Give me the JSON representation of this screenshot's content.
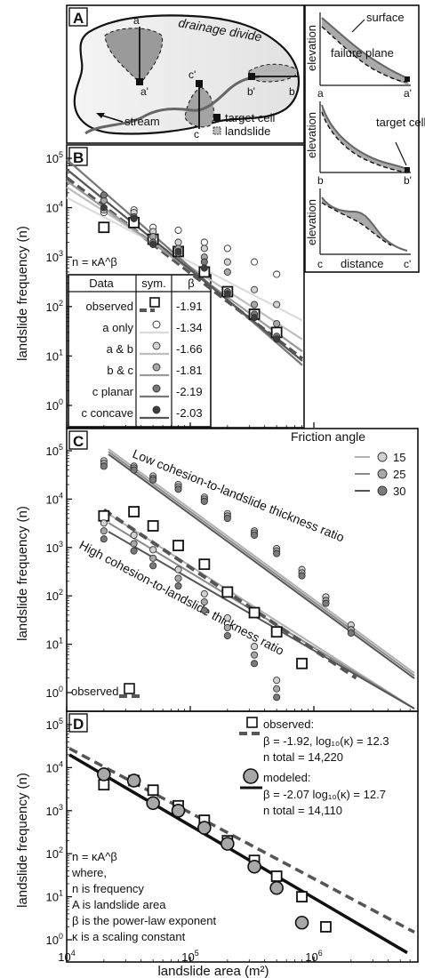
{
  "panels": {
    "A": {
      "letter": "A",
      "map_labels": {
        "drainage_divide": "drainage divide",
        "stream": "stream",
        "a": "a",
        "a_prime": "a'",
        "b": "b",
        "b_prime": "b'",
        "c": "c",
        "c_prime": "c'"
      },
      "legend": {
        "target_cell": "target cell",
        "landslide": "landslide"
      },
      "profiles": {
        "elevation_label": "elevation",
        "distance_label": "distance",
        "surface": "surface",
        "failure_plane": "failure plane",
        "target_cell": "target cell",
        "p1_left": "a",
        "p1_right": "a'",
        "p2_left": "b",
        "p2_right": "b'",
        "p3_left": "c",
        "p3_right": "c'"
      }
    },
    "B": {
      "letter": "B",
      "equation": "n = κA^β",
      "table_headers": [
        "Data",
        "sym.",
        "β"
      ],
      "table_rows": [
        {
          "data": "observed",
          "beta": "-1.91"
        },
        {
          "data": "a only",
          "beta": "-1.34"
        },
        {
          "data": "a & b",
          "beta": "-1.66"
        },
        {
          "data": "b & c",
          "beta": "-1.81"
        },
        {
          "data": "c planar",
          "beta": "-2.19"
        },
        {
          "data": "c concave",
          "beta": "-2.03"
        }
      ]
    },
    "C": {
      "letter": "C",
      "legend_title": "Friction angle",
      "legend_items": [
        "15",
        "25",
        "30"
      ],
      "label_low": "Low cohesion-to-landslide thickness ratio",
      "label_high": "High cohesion-to-landslide thickness ratio",
      "observed_label": "observed"
    },
    "D": {
      "letter": "D",
      "observed_label": "observed:",
      "observed_beta": "β = -1.92, log₁₀(κ) = 12.3",
      "observed_total": "n total = 14,220",
      "modeled_label": "modeled:",
      "modeled_beta": "β = -2.07 log₁₀(κ) = 12.7",
      "modeled_total": "n total = 14,110",
      "notes": [
        "n = κA^β",
        "where,",
        "n is frequency",
        "A is landslide area",
        "β is the power-law exponent",
        "κ is a scaling constant"
      ]
    }
  },
  "axes": {
    "ylabel": "landslide frequency (n)",
    "xlabel": "landslide area (m²)",
    "xticks": [
      {
        "base": "10",
        "exp": "4"
      },
      {
        "base": "10",
        "exp": "5"
      },
      {
        "base": "10",
        "exp": "6"
      }
    ],
    "yticks": [
      {
        "base": "10",
        "exp": "0"
      },
      {
        "base": "10",
        "exp": "1"
      },
      {
        "base": "10",
        "exp": "2"
      },
      {
        "base": "10",
        "exp": "3"
      },
      {
        "base": "10",
        "exp": "4"
      },
      {
        "base": "10",
        "exp": "5"
      }
    ]
  },
  "colors": {
    "observed_dash": "#555555",
    "gray_light": "#d2d2d2",
    "gray_mid": "#a8a8a8",
    "gray_dark": "#7a7a7a",
    "near_black": "#3c3c3c"
  },
  "chart_data": [
    {
      "panel": "B",
      "type": "scatter",
      "xscale": "log",
      "yscale": "log",
      "xlim": [
        10000,
        3000000
      ],
      "ylim": [
        0.4,
        120000
      ],
      "x": [
        20000,
        35000,
        50000,
        80000,
        130000,
        200000,
        330000,
        500000,
        800000,
        1250000,
        2000000
      ],
      "series": [
        {
          "name": "observed",
          "style": "square",
          "values": [
            4000,
            5000,
            2300,
            1300,
            500,
            200,
            70,
            30,
            10,
            2,
            null
          ],
          "fit_beta": -1.91,
          "fit_endpoints": [
            [
              10000,
              40000
            ],
            [
              2500000,
              1.0
            ]
          ]
        },
        {
          "name": "a only",
          "style": "circle-white",
          "values": [
            8000,
            9000,
            4000,
            3500,
            2000,
            1500,
            800,
            450,
            220,
            120,
            55
          ],
          "fit_beta": -1.34,
          "fit_endpoints": [
            [
              10000,
              16000
            ],
            [
              2500000,
              12
            ]
          ]
        },
        {
          "name": "a & b",
          "style": "circle-light",
          "values": [
            9000,
            8000,
            3300,
            2000,
            1500,
            800,
            220,
            110,
            45,
            25,
            12
          ],
          "fit_beta": -1.66,
          "fit_endpoints": [
            [
              10000,
              26000
            ],
            [
              2500000,
              3.5
            ]
          ]
        },
        {
          "name": "b & c",
          "style": "circle-mid",
          "values": [
            14000,
            6500,
            2600,
            1500,
            1000,
            500,
            110,
            45,
            15,
            6,
            null
          ],
          "fit_beta": -1.81,
          "fit_endpoints": [
            [
              10000,
              35000
            ],
            [
              2500000,
              1.6
            ]
          ]
        },
        {
          "name": "c planar",
          "style": "circle-dark",
          "values": [
            18000,
            6500,
            2000,
            1200,
            800,
            200,
            70,
            25,
            8,
            2,
            1
          ],
          "fit_beta": -2.19,
          "fit_endpoints": [
            [
              10000,
              95000
            ],
            [
              2500000,
              0.55
            ]
          ]
        },
        {
          "name": "c concave",
          "style": "circle-darkest",
          "values": [
            10000,
            6000,
            1800,
            1300,
            600,
            180,
            60,
            22,
            5,
            2,
            1
          ],
          "fit_beta": -2.03,
          "fit_endpoints": [
            [
              10000,
              60000
            ],
            [
              2500000,
              0.8
            ]
          ]
        }
      ]
    },
    {
      "panel": "C",
      "type": "scatter",
      "xscale": "log",
      "yscale": "log",
      "xlim": [
        10000,
        3000000
      ],
      "ylim": [
        0.4,
        120000
      ],
      "x": [
        20000,
        35000,
        50000,
        80000,
        130000,
        200000,
        330000,
        500000,
        800000,
        1250000,
        2000000
      ],
      "series": [
        {
          "name": "observed",
          "style": "square",
          "values": [
            4500,
            5500,
            2800,
            1100,
            450,
            120,
            45,
            18,
            4,
            null,
            null
          ],
          "fit_endpoints": [
            [
              20000,
              6000
            ],
            [
              2200000,
              2.0
            ]
          ]
        },
        {
          "name": "low cohesion 15",
          "style": "circle-light",
          "values": [
            62000,
            48000,
            30000,
            20000,
            11000,
            5000,
            2200,
            950,
            350,
            95,
            25
          ]
        },
        {
          "name": "low cohesion 25",
          "style": "circle-mid",
          "values": [
            55000,
            44000,
            27000,
            18000,
            10000,
            4500,
            2000,
            850,
            300,
            80,
            20
          ]
        },
        {
          "name": "low cohesion 30",
          "style": "circle-dark",
          "values": [
            48000,
            40000,
            25000,
            16000,
            9000,
            4000,
            1800,
            750,
            260,
            70,
            17
          ]
        },
        {
          "name": "high cohesion 15",
          "style": "circle-light",
          "values": [
            3200,
            1800,
            900,
            350,
            110,
            35,
            9,
            1.8,
            null,
            null,
            null
          ]
        },
        {
          "name": "high cohesion 25",
          "style": "circle-mid",
          "values": [
            2200,
            1200,
            600,
            230,
            75,
            22,
            6,
            1.2,
            null,
            null,
            null
          ]
        },
        {
          "name": "high cohesion 30",
          "style": "circle-dark",
          "values": [
            1500,
            850,
            420,
            160,
            50,
            15,
            4,
            0.8,
            null,
            null,
            null
          ]
        }
      ]
    },
    {
      "panel": "D",
      "type": "scatter",
      "xscale": "log",
      "yscale": "log",
      "xlim": [
        10000,
        3000000
      ],
      "ylim": [
        0.4,
        120000
      ],
      "series": [
        {
          "name": "observed",
          "style": "square",
          "x": [
            20000,
            35000,
            50000,
            80000,
            130000,
            200000,
            330000,
            500000,
            800000,
            1250000
          ],
          "values": [
            4000,
            5000,
            3000,
            1300,
            600,
            200,
            70,
            30,
            10,
            2
          ],
          "fit_beta": -1.92,
          "fit_log10_kappa": 12.3
        },
        {
          "name": "modeled",
          "style": "circle-mid",
          "x": [
            20000,
            35000,
            50000,
            80000,
            130000,
            200000,
            330000,
            500000,
            800000
          ],
          "values": [
            7000,
            5000,
            1500,
            1000,
            400,
            170,
            50,
            16,
            2.5
          ],
          "fit_beta": -2.07,
          "fit_log10_kappa": 12.7
        }
      ]
    }
  ]
}
